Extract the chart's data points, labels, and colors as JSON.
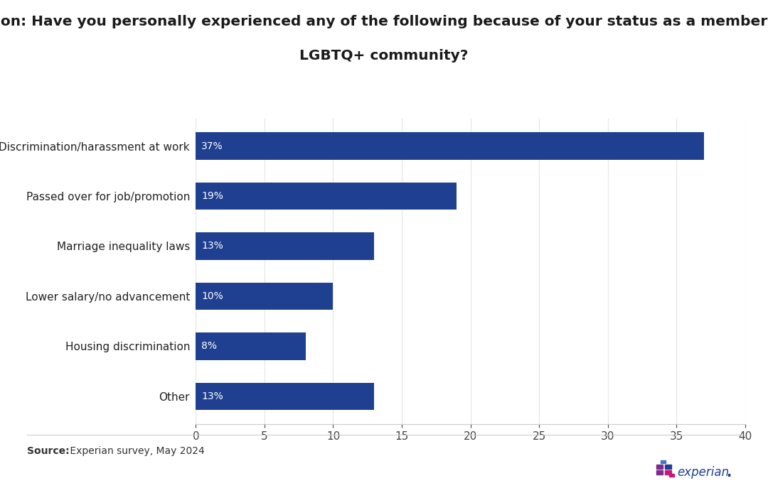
{
  "title_line1": "Question: Have you personally experienced any of the following because of your status as a member of the",
  "title_line2": "LGBTQ+ community?",
  "categories": [
    "Discrimination/harassment at work",
    "Passed over for job/promotion",
    "Marriage inequality laws",
    "Lower salary/no advancement",
    "Housing discrimination",
    "Other"
  ],
  "values": [
    37,
    19,
    13,
    10,
    8,
    13
  ],
  "bar_color": "#1F4090",
  "label_color": "#ffffff",
  "bar_height": 0.55,
  "xlim": [
    0,
    40
  ],
  "xticks": [
    0,
    5,
    10,
    15,
    20,
    25,
    30,
    35,
    40
  ],
  "bg_color": "#ffffff",
  "title_fontsize": 14.5,
  "label_fontsize": 11,
  "tick_fontsize": 11,
  "value_fontsize": 10,
  "source_fontsize": 10,
  "separator_color": "#cccccc",
  "logo_colors": {
    "purple": "#7B2D8B",
    "blue_dark": "#1F4090",
    "pink": "#C8177A",
    "blue_light": "#4472C4",
    "pink2": "#C8177A"
  }
}
